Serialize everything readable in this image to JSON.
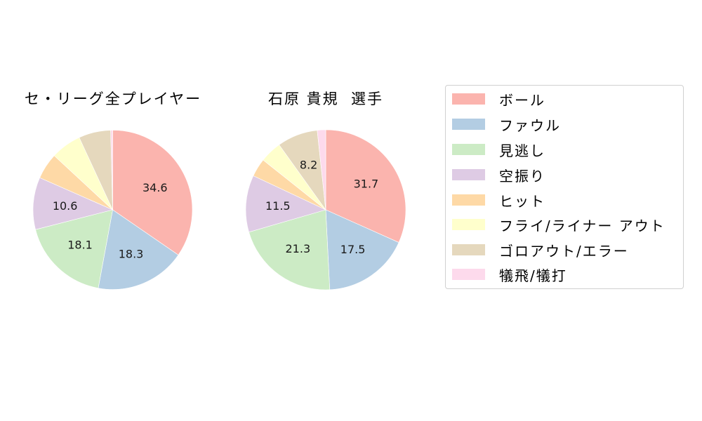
{
  "chart_data": [
    {
      "type": "pie",
      "title": "セ・リーグ全プレイヤー",
      "categories": [
        "ボール",
        "ファウル",
        "見逃し",
        "空振り",
        "ヒット",
        "フライ/ライナー アウト",
        "ゴロアウト/エラー",
        "犠飛/犠打"
      ],
      "values": [
        34.6,
        18.3,
        18.1,
        10.6,
        5.3,
        6.2,
        6.5,
        0.4
      ],
      "labels": [
        "34.6",
        "18.3",
        "18.1",
        "10.6",
        "",
        "",
        "",
        ""
      ],
      "start_angle": 90,
      "direction": "clockwise",
      "center": [
        160.5,
        299
      ],
      "radius": 113.5
    },
    {
      "type": "pie",
      "title": "石原 貴規  選手",
      "categories": [
        "ボール",
        "ファウル",
        "見逃し",
        "空振り",
        "ヒット",
        "フライ/ライナー アウト",
        "ゴロアウト/エラー",
        "犠飛/犠打"
      ],
      "values": [
        31.7,
        17.5,
        21.3,
        11.5,
        3.7,
        4.4,
        8.2,
        1.7
      ],
      "labels": [
        "31.7",
        "17.5",
        "21.3",
        "11.5",
        "",
        "",
        "8.2",
        ""
      ],
      "start_angle": 90,
      "direction": "clockwise",
      "center": [
        464,
        299
      ],
      "radius": 114
    }
  ],
  "legend": {
    "position": "right",
    "items": [
      {
        "label": "ボール",
        "color": "#fbb4ae"
      },
      {
        "label": "ファウル",
        "color": "#b3cde3"
      },
      {
        "label": "見逃し",
        "color": "#ccebc5"
      },
      {
        "label": "空振り",
        "color": "#decbe4"
      },
      {
        "label": "ヒット",
        "color": "#fed9a6"
      },
      {
        "label": "フライ/ライナー アウト",
        "color": "#ffffcc"
      },
      {
        "label": "ゴロアウト/エラー",
        "color": "#e5d8bd"
      },
      {
        "label": "犠飛/犠打",
        "color": "#fddaec"
      }
    ]
  }
}
